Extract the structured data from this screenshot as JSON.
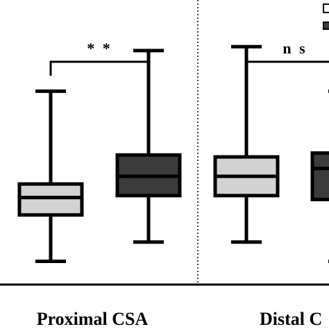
{
  "chart_data": {
    "type": "boxplot",
    "categories": [
      "Proximal CSA",
      "Distal CSA"
    ],
    "category_labels_visible": [
      "Proximal CSA",
      "Distal C"
    ],
    "series": [
      {
        "color": "#d3d3d3",
        "boxes": [
          {
            "min": 0.12,
            "q1": 0.36,
            "median": 0.45,
            "q3": 0.52,
            "max": 1.0
          },
          {
            "min": 0.22,
            "q1": 0.46,
            "median": 0.56,
            "q3": 0.66,
            "max": 1.23
          }
        ]
      },
      {
        "color": "#3c3c3c",
        "boxes": [
          {
            "min": 0.22,
            "q1": 0.46,
            "median": 0.56,
            "q3": 0.67,
            "max": 1.21
          },
          {
            "min": 0.12,
            "q1": 0.44,
            "median": 0.6,
            "q3": 0.68,
            "max": 1.0
          }
        ]
      }
    ],
    "significance": [
      {
        "category": "Proximal CSA",
        "label": "* *"
      },
      {
        "category": "Distal CSA",
        "label": "n s"
      }
    ],
    "ylim": [
      0,
      1.5
    ],
    "grid": false,
    "divider": "dotted vertical line between groups",
    "legend": "top-right (cropped)"
  }
}
